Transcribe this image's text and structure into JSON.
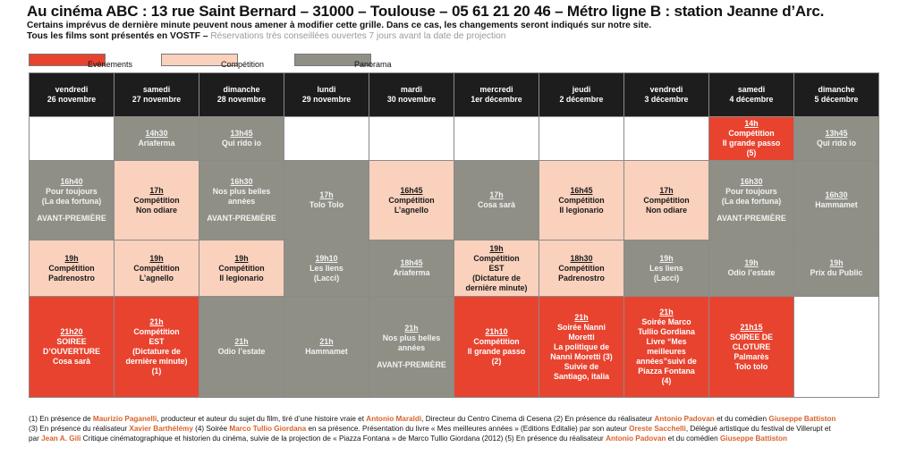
{
  "header": {
    "title": "Au cinéma ABC : 13 rue Saint Bernard – 31000 – Toulouse – 05 61 21 20 46 – Métro ligne B : station Jeanne d’Arc.",
    "line2": "Certains imprévus de dernière minute peuvent nous amener à modifier cette grille. Dans ce cas, les changements seront indiqués sur notre site.",
    "line3_main": "Tous les films sont présentés en VOSTF – ",
    "line3_muted": "Réservations très conseillées ouvertes 7 jours avant la date de projection"
  },
  "legend": {
    "events_label": "Evènements",
    "competition_label": "Compétition",
    "panorama_label": "Panorama",
    "events_color": "#e8432f",
    "competition_color": "#f9d1bd",
    "panorama_color": "#8f8f86"
  },
  "days": [
    {
      "name": "vendredi",
      "date": "26 novembre"
    },
    {
      "name": "samedi",
      "date": "27 novembre"
    },
    {
      "name": "dimanche",
      "date": "28 novembre"
    },
    {
      "name": "lundi",
      "date": "29 novembre"
    },
    {
      "name": "mardi",
      "date": "30 novembre"
    },
    {
      "name": "mercredi",
      "date": "1er décembre"
    },
    {
      "name": "jeudi",
      "date": "2 décembre"
    },
    {
      "name": "vendredi",
      "date": "3 décembre"
    },
    {
      "name": "samedi",
      "date": "4 décembre"
    },
    {
      "name": "dimanche",
      "date": "5 décembre"
    }
  ],
  "rows": [
    [
      {
        "cat": "empty"
      },
      {
        "cat": "pano",
        "time": "14h30",
        "lines": [
          "Ariaferma"
        ]
      },
      {
        "cat": "pano",
        "time": "13h45",
        "lines": [
          "Qui rido io"
        ]
      },
      {
        "cat": "empty"
      },
      {
        "cat": "empty"
      },
      {
        "cat": "empty"
      },
      {
        "cat": "empty"
      },
      {
        "cat": "empty"
      },
      {
        "cat": "event",
        "time": "14h",
        "lines": [
          "Compétition",
          "Il grande passo",
          "(5)"
        ]
      },
      {
        "cat": "pano",
        "time": "13h45",
        "lines": [
          "Qui rido io"
        ]
      }
    ],
    [
      {
        "cat": "pano",
        "time": "16h40",
        "lines": [
          "Pour toujours",
          "(La dea fortuna)"
        ],
        "extra": "AVANT-PREMIÈRE"
      },
      {
        "cat": "comp",
        "time": "17h",
        "lines": [
          "Compétition",
          "Non odiare"
        ]
      },
      {
        "cat": "pano",
        "time": "16h30",
        "lines": [
          "Nos plus belles",
          "années"
        ],
        "extra": "AVANT-PREMIÈRE"
      },
      {
        "cat": "pano",
        "time": "17h",
        "lines": [
          "Tolo Tolo"
        ]
      },
      {
        "cat": "comp",
        "time": "16h45",
        "lines": [
          "Compétition",
          "L’agnello"
        ]
      },
      {
        "cat": "pano",
        "time": "17h",
        "lines": [
          "Cosa sarà"
        ]
      },
      {
        "cat": "comp",
        "time": "16h45",
        "lines": [
          "Compétition",
          "Il legionario"
        ]
      },
      {
        "cat": "comp",
        "time": "17h",
        "lines": [
          "Compétition",
          "Non odiare"
        ]
      },
      {
        "cat": "pano",
        "time": "16h30",
        "lines": [
          "Pour toujours",
          "(La dea fortuna)"
        ],
        "extra": "AVANT-PREMIÈRE"
      },
      {
        "cat": "pano",
        "time": "16h30",
        "lines": [
          "Hammamet"
        ]
      }
    ],
    [
      {
        "cat": "comp",
        "time": "19h",
        "lines": [
          "Compétition",
          "Padrenostro"
        ]
      },
      {
        "cat": "comp",
        "time": "19h",
        "lines": [
          "Compétition",
          "L’agnello"
        ]
      },
      {
        "cat": "comp",
        "time": "19h",
        "lines": [
          "Compétition",
          "Il legionario"
        ]
      },
      {
        "cat": "pano",
        "time": "19h10",
        "lines": [
          "Les liens",
          "(Lacci)"
        ]
      },
      {
        "cat": "pano",
        "time": "18h45",
        "lines": [
          "Ariaferma"
        ]
      },
      {
        "cat": "comp",
        "time": "19h",
        "lines": [
          "Compétition",
          "EST",
          "(Dictature de",
          "dernière minute)"
        ]
      },
      {
        "cat": "comp",
        "time": "18h30",
        "lines": [
          "Compétition",
          "Padrenostro"
        ]
      },
      {
        "cat": "pano",
        "time": "19h",
        "lines": [
          "Les liens",
          "(Lacci)"
        ]
      },
      {
        "cat": "pano",
        "time": "19h",
        "lines": [
          "Odio l’estate"
        ]
      },
      {
        "cat": "pano",
        "time": "19h",
        "lines": [
          "Prix du Public"
        ]
      }
    ],
    [
      {
        "cat": "event",
        "time": "21h20",
        "lines": [
          "SOIREE",
          "D’OUVERTURE",
          "Cosa sarà"
        ]
      },
      {
        "cat": "event",
        "time": "21h",
        "lines": [
          "Compétition",
          "EST",
          "(Dictature de",
          "dernière minute)",
          "(1)"
        ]
      },
      {
        "cat": "pano",
        "time": "21h",
        "lines": [
          "Odio l’estate"
        ]
      },
      {
        "cat": "pano",
        "time": "21h",
        "lines": [
          "Hammamet"
        ]
      },
      {
        "cat": "pano",
        "time": "21h",
        "lines": [
          "Nos plus belles",
          "années"
        ],
        "extra": "AVANT-PREMIÈRE"
      },
      {
        "cat": "event",
        "time": "21h10",
        "lines": [
          "Compétition",
          "Il grande passo",
          "(2)"
        ]
      },
      {
        "cat": "event",
        "time": "21h",
        "lines": [
          "Soirée Nanni",
          "Moretti",
          "La politique de",
          "Nanni Moretti (3)",
          "Suivie de",
          "Santiago, italia"
        ]
      },
      {
        "cat": "event",
        "time": "21h",
        "lines": [
          "Soirée Marco",
          "Tullio Gordiana",
          "Livre “Mes",
          "meilleures",
          "années”suivi de",
          "Piazza Fontana",
          "(4)"
        ]
      },
      {
        "cat": "event",
        "time": "21h15",
        "lines": [
          "SOIREE DE",
          "CLOTURE",
          "Palmarès",
          "Tolo tolo"
        ]
      },
      {
        "cat": "empty"
      }
    ]
  ],
  "footer": {
    "l1": [
      {
        "t": "(1) En présence de ",
        "hl": false
      },
      {
        "t": "Maurizio Paganelli",
        "hl": true
      },
      {
        "t": ", producteur et auteur du sujet du film, tiré d’une histoire vraie et ",
        "hl": false
      },
      {
        "t": "Antonio Maraldi",
        "hl": true
      },
      {
        "t": ", Directeur du Centro Cinema di Cesena (2) En présence du réalisateur ",
        "hl": false
      },
      {
        "t": "Antonio Padovan",
        "hl": true
      },
      {
        "t": " et du comédien ",
        "hl": false
      },
      {
        "t": "Giuseppe Battiston",
        "hl": true
      }
    ],
    "l2": [
      {
        "t": "(3) En présence du réalisateur ",
        "hl": false
      },
      {
        "t": "Xavier Barthélémy",
        "hl": true
      },
      {
        "t": " (4) Soirée ",
        "hl": false
      },
      {
        "t": "Marco Tullio Giordana",
        "hl": true
      },
      {
        "t": " en sa présence. Présentation du livre « Mes meilleures années » (Editions Editalie) par son auteur ",
        "hl": false
      },
      {
        "t": "Oreste Sacchelli",
        "hl": true
      },
      {
        "t": ", Délégué artistique du festival de Villerupt et",
        "hl": false
      }
    ],
    "l3": [
      {
        "t": "par ",
        "hl": false
      },
      {
        "t": "Jean A. Gili",
        "hl": true
      },
      {
        "t": " Critique cinématographique et historien du cinéma, suivie de la projection de « Piazza Fontana » de Marco Tullio Giordana (2012) (5) En présence du réalisateur ",
        "hl": false
      },
      {
        "t": "Antonio Padovan",
        "hl": true
      },
      {
        "t": " et du comédien ",
        "hl": false
      },
      {
        "t": "Giuseppe Battiston",
        "hl": true
      }
    ]
  }
}
